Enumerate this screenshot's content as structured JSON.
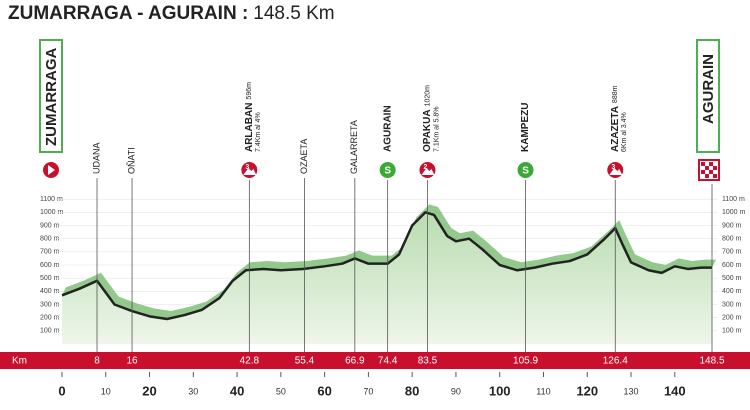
{
  "chart_data": {
    "type": "area",
    "title": "ZUMARRAGA - AGURAIN :",
    "subtitle": "148.5 Km",
    "start": "ZUMARRAGA",
    "finish": "AGURAIN",
    "km_label": "Km",
    "finish_km": 148.5,
    "color": "#222222",
    "fill": "#8fc785",
    "x": [
      0,
      4,
      8,
      12,
      16,
      20,
      24,
      28,
      32,
      36,
      39,
      42,
      46,
      50,
      55,
      60,
      64,
      66.9,
      70,
      74.4,
      77,
      80,
      83,
      85,
      88,
      90,
      93,
      96,
      100,
      104,
      108,
      112,
      116,
      120,
      124,
      126.4,
      128,
      130,
      134,
      137,
      140,
      143,
      146,
      148.5
    ],
    "values": [
      370,
      420,
      480,
      300,
      250,
      210,
      190,
      220,
      260,
      350,
      480,
      560,
      570,
      560,
      570,
      590,
      610,
      650,
      610,
      610,
      680,
      900,
      1000,
      980,
      820,
      780,
      800,
      720,
      600,
      560,
      580,
      610,
      630,
      680,
      800,
      880,
      760,
      620,
      560,
      540,
      590,
      570,
      580,
      580
    ],
    "xlim": [
      0,
      148.5
    ],
    "ylim": [
      0,
      1200
    ],
    "xticks": [
      0,
      10,
      20,
      30,
      40,
      50,
      60,
      70,
      80,
      90,
      100,
      110,
      120,
      130,
      140
    ],
    "yticks": [
      {
        "value": 100,
        "label": "100 m"
      },
      {
        "value": 200,
        "label": "200 m"
      },
      {
        "value": 300,
        "label": "300 m"
      },
      {
        "value": 400,
        "label": "400 m"
      },
      {
        "value": 500,
        "label": "500 m"
      },
      {
        "value": 600,
        "label": "600 m"
      },
      {
        "value": 700,
        "label": "700 m"
      },
      {
        "value": 800,
        "label": "800 m"
      },
      {
        "value": 900,
        "label": "900 m"
      },
      {
        "value": 1000,
        "label": "1000 m"
      },
      {
        "value": 1100,
        "label": "1100 m"
      }
    ],
    "grid": true,
    "waypoints": [
      {
        "km": 8,
        "name": "UDANA"
      },
      {
        "km": 16,
        "name": "OÑATI"
      },
      {
        "km": 42.8,
        "name": "ARLABAN",
        "elevation": "596m",
        "climb": "7.4Km al 4%",
        "category": "3"
      },
      {
        "km": 55.4,
        "name": "OZAETA"
      },
      {
        "km": 66.9,
        "name": "GALARRETA"
      },
      {
        "km": 74.4,
        "name": "AGURAIN",
        "category": "S"
      },
      {
        "km": 83.5,
        "name": "OPAKUA",
        "elevation": "1020m",
        "climb": "7.1Km al 5.8%",
        "category": "2"
      },
      {
        "km": 105.9,
        "name": "KAMPEZU",
        "category": "S"
      },
      {
        "km": 126.4,
        "name": "AZAZETA",
        "elevation": "888m",
        "climb": "6Km al 3.4%",
        "category": "3"
      }
    ]
  }
}
